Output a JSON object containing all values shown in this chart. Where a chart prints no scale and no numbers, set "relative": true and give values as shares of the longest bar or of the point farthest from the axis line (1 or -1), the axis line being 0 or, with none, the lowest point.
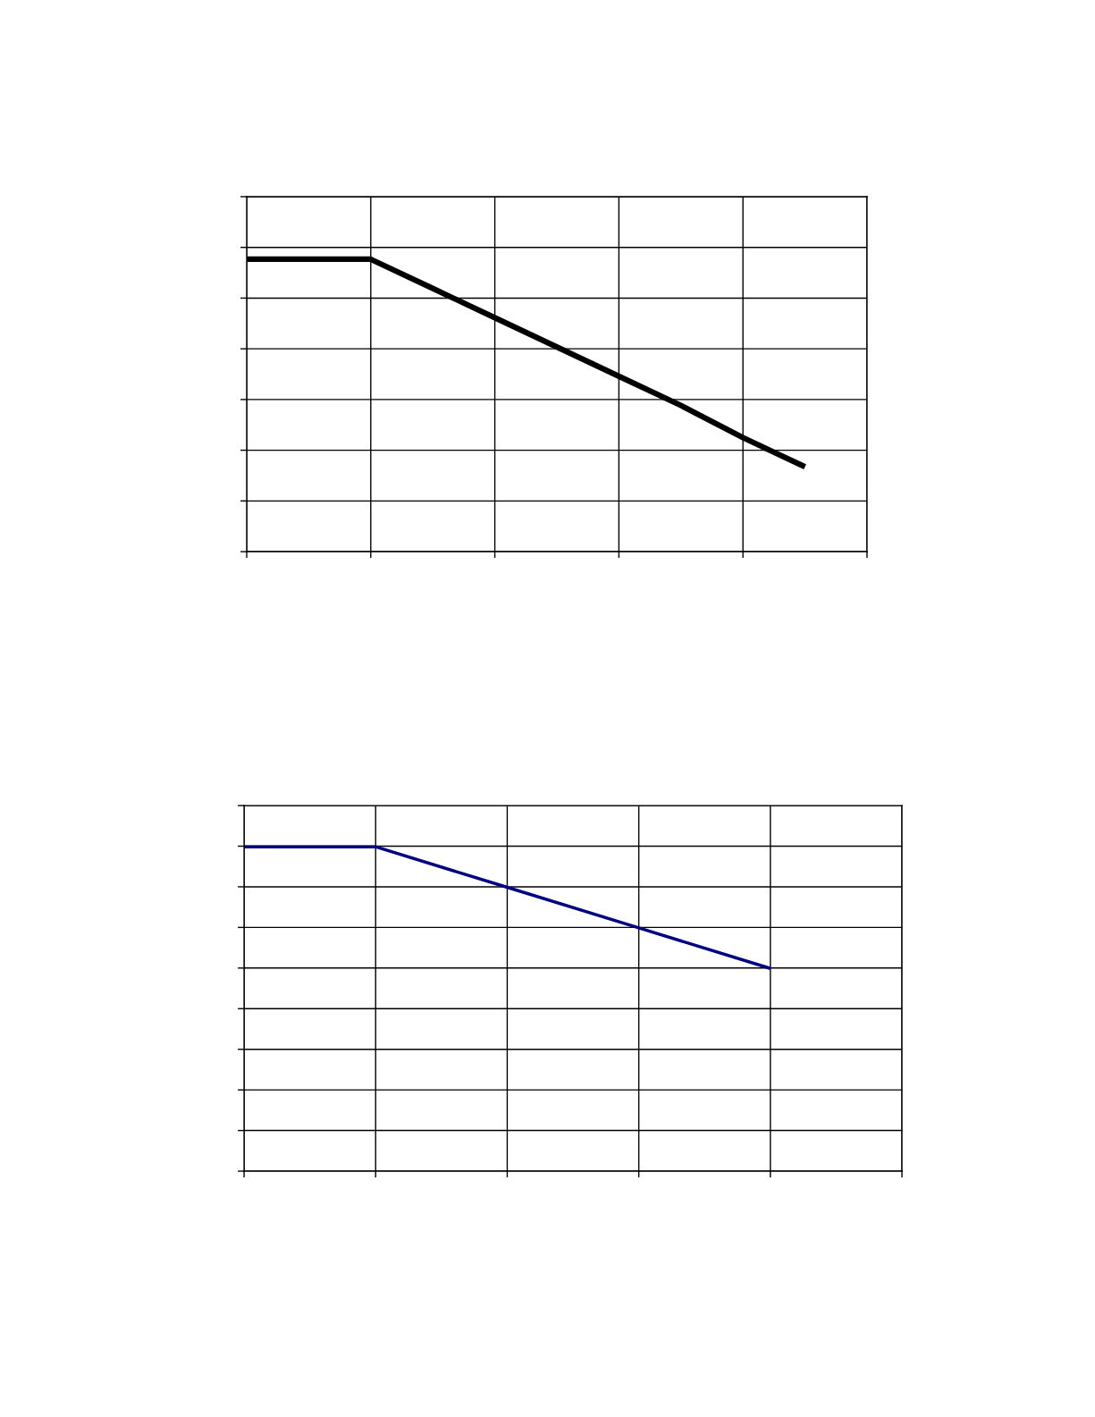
{
  "chart_data": [
    {
      "type": "line",
      "relative": true,
      "categories": [
        null,
        null,
        null,
        null,
        null,
        null,
        null,
        null,
        null,
        null,
        null
      ],
      "series": [
        {
          "color": "#000000",
          "values": [
            1,
            1,
            1,
            0.9,
            0.8,
            0.7,
            0.6,
            0.5,
            0.39,
            0.29,
            null
          ]
        }
      ],
      "grid": true,
      "tick_labels": false,
      "marker": "none",
      "line_style": "solid"
    },
    {
      "type": "line",
      "relative": true,
      "categories": [
        null,
        null,
        null,
        null,
        null,
        null
      ],
      "series": [
        {
          "color": "#000080",
          "values": [
            1,
            1,
            0.875,
            0.75,
            0.625,
            null
          ]
        }
      ],
      "grid": true,
      "tick_labels": false,
      "marker": "none",
      "line_style": "solid"
    }
  ]
}
